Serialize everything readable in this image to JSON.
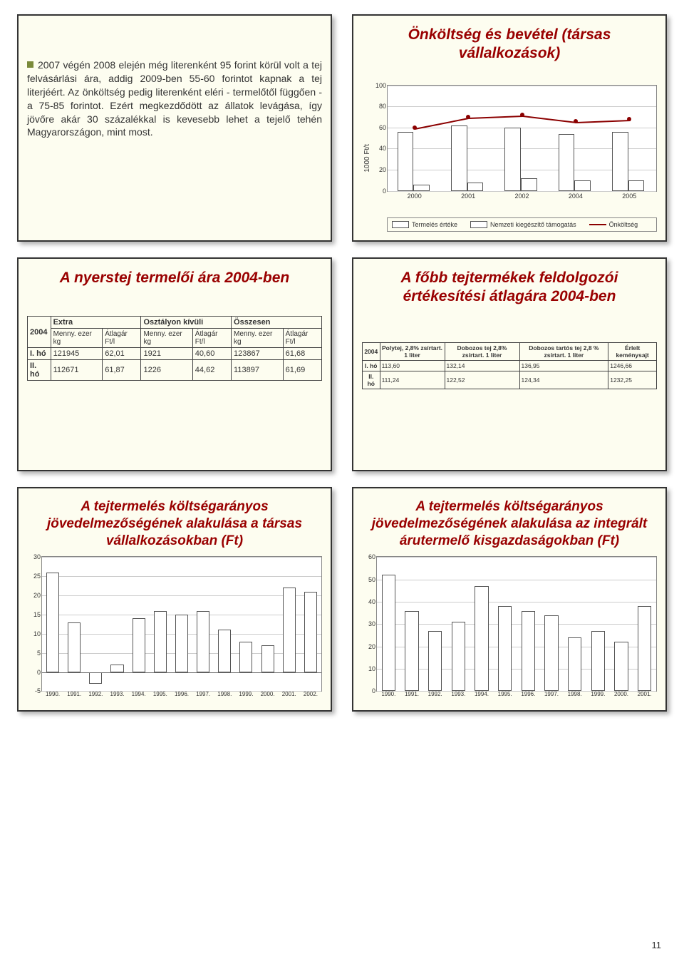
{
  "panel1": {
    "title_a": "",
    "bullet_text": "2007 végén 2008 elején még literenként 95 forint körül volt a tej felvásárlási ára, addig 2009-ben 55-60 forintot kapnak a tej literjéért. Az önköltség pedig literenként eléri - termelőtől függően - a 75-85 forintot. Ezért megkezdődött az állatok levágása, így jövőre akár 30 százalékkal is kevesebb lehet a tejelő tehén Magyarországon, mint most."
  },
  "panel2": {
    "title": "Önköltség és bevétel (társas vállalkozások)",
    "chart": {
      "ylabel": "1000 Ft/t",
      "ymax": 100,
      "ytick_step": 20,
      "categories": [
        "2000",
        "2001",
        "2002",
        "2004",
        "2005"
      ],
      "series_a": {
        "name": "Termelés értéke",
        "values": [
          56,
          62,
          60,
          54,
          56
        ]
      },
      "series_b": {
        "name": "Nemzeti kiegészítő támogatás",
        "values": [
          6,
          8,
          12,
          10,
          10
        ]
      },
      "line": {
        "name": "Önköltség",
        "values": [
          60,
          70,
          72,
          66,
          68
        ],
        "color": "#8b0000"
      },
      "bar_color": "#ffffff",
      "border_color": "#555555",
      "grid_color": "#cccccc",
      "bg": "#ffffff"
    }
  },
  "panel3": {
    "title": "A nyerstej termelői ára 2004-ben",
    "table": {
      "year_label": "2004",
      "groups": [
        {
          "name": "Extra",
          "cols": [
            "Menny. ezer kg",
            "Átlagár Ft/l"
          ]
        },
        {
          "name": "Osztályon kívüli",
          "cols": [
            "Menny. ezer kg",
            "Átlagár Ft/l"
          ]
        },
        {
          "name": "Összesen",
          "cols": [
            "Menny. ezer kg",
            "Átlagár Ft/l"
          ]
        }
      ],
      "rows": [
        {
          "label": "I. hó",
          "cells": [
            "121945",
            "62,01",
            "1921",
            "40,60",
            "123867",
            "61,68"
          ]
        },
        {
          "label": "II. hó",
          "cells": [
            "112671",
            "61,87",
            "1226",
            "44,62",
            "113897",
            "61,69"
          ]
        }
      ]
    }
  },
  "panel4": {
    "title": "A főbb tejtermékek feldolgozói értékesítési átlagára 2004-ben",
    "table": {
      "year_label": "2004",
      "headers": [
        "Polytej, 2,8% zsírtart. 1 liter",
        "Dobozos tej 2,8% zsírtart. 1 liter",
        "Dobozos tartós tej 2,8 % zsírtart. 1 liter",
        "Érlelt keménysajt"
      ],
      "rows": [
        {
          "label": "I. hó",
          "cells": [
            "113,60",
            "132,14",
            "136,95",
            "1246,66"
          ]
        },
        {
          "label": "II. hó",
          "cells": [
            "111,24",
            "122,52",
            "124,34",
            "1232,25"
          ]
        }
      ]
    }
  },
  "panel5": {
    "title": "A tejtermelés költségarányos jövedelmezőségének alakulása a társas vállalkozásokban (Ft)",
    "chart": {
      "categories": [
        "1990.",
        "1991.",
        "1992.",
        "1993.",
        "1994.",
        "1995.",
        "1996.",
        "1997.",
        "1998.",
        "1999.",
        "2000.",
        "2001.",
        "2002."
      ],
      "values": [
        26,
        13,
        -3,
        2,
        14,
        16,
        15,
        16,
        11,
        8,
        7,
        22,
        21
      ],
      "ymin": -5,
      "ymax": 30,
      "ytick_step": 5,
      "bar_color": "#ffffff",
      "border_color": "#555555",
      "grid_color": "#cccccc"
    }
  },
  "panel6": {
    "title": "A tejtermelés költségarányos jövedelmezőségének alakulása az integrált árutermelő kisgazdaságokban (Ft)",
    "chart": {
      "categories": [
        "1990.",
        "1991.",
        "1992.",
        "1993.",
        "1994.",
        "1995.",
        "1996.",
        "1997.",
        "1998.",
        "1999.",
        "2000.",
        "2001."
      ],
      "values": [
        52,
        36,
        27,
        31,
        47,
        38,
        36,
        34,
        24,
        27,
        22,
        38
      ],
      "ymin": 0,
      "ymax": 60,
      "ytick_step": 10,
      "bar_color": "#ffffff",
      "border_color": "#555555",
      "grid_color": "#cccccc"
    }
  },
  "page_number": "11"
}
